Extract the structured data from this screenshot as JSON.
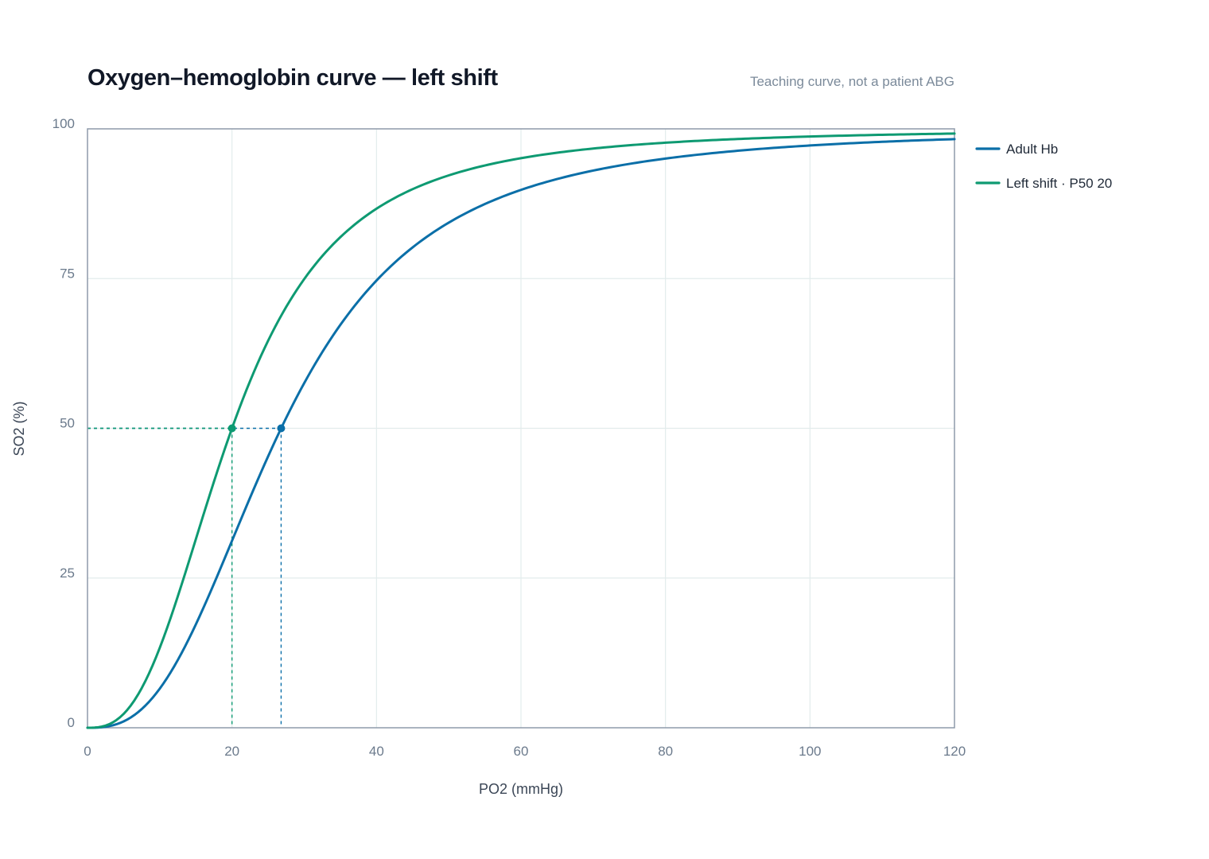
{
  "chart_data": {
    "type": "line",
    "title": "Oxygen–hemoglobin curve — left shift",
    "subtitle": "Teaching curve, not a patient ABG",
    "xlabel": "PO2 (mmHg)",
    "ylabel": "SO2 (%)",
    "xlim": [
      0,
      120
    ],
    "ylim": [
      0,
      100
    ],
    "x_ticks": [
      0,
      20,
      40,
      60,
      80,
      100,
      120
    ],
    "y_ticks": [
      0,
      25,
      50,
      75,
      100
    ],
    "grid": true,
    "legend_position": "right",
    "series": [
      {
        "name": "Adult Hb",
        "color": "#0b6fa8",
        "p50": 26.8,
        "x": [
          0,
          5,
          10,
          15,
          20,
          26.8,
          30,
          40,
          50,
          60,
          70,
          80,
          90,
          100,
          110,
          120
        ],
        "y": [
          0,
          4.4,
          13.1,
          26.2,
          32.0,
          50,
          58.2,
          75.1,
          85.7,
          90.4,
          93.6,
          95.4,
          96.6,
          97.4,
          97.9,
          98.3
        ]
      },
      {
        "name": "Left shift · P50 20",
        "color": "#0e9a72",
        "p50": 20,
        "x": [
          0,
          5,
          10,
          15,
          20,
          25,
          30,
          40,
          50,
          60,
          70,
          80,
          90,
          100,
          110,
          120
        ],
        "y": [
          0,
          7.0,
          21.2,
          36.4,
          50,
          67.8,
          77.1,
          87.1,
          92.5,
          95.4,
          96.9,
          97.8,
          98.4,
          98.8,
          99.1,
          99.3
        ]
      }
    ],
    "p50_markers": [
      {
        "series": "Adult Hb",
        "x": 26.8,
        "y": 50,
        "color": "#0b6fa8"
      },
      {
        "series": "Left shift · P50 20",
        "x": 20,
        "y": 50,
        "color": "#0e9a72"
      }
    ],
    "colors": {
      "grid": "#e3ecec",
      "frame": "#8e9aaa",
      "guide_adult": "#0b6fa8",
      "guide_left": "#0e9a72"
    }
  }
}
